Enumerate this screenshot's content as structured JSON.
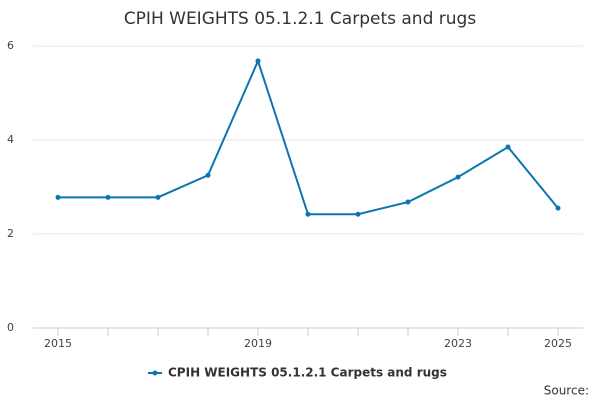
{
  "chart_data": {
    "type": "line",
    "title": "CPIH WEIGHTS 05.1.2.1 Carpets and rugs",
    "x": [
      2015,
      2016,
      2017,
      2018,
      2019,
      2020,
      2021,
      2022,
      2023,
      2024,
      2025
    ],
    "series": [
      {
        "name": "CPIH WEIGHTS 05.1.2.1 Carpets and rugs",
        "color": "#0a75b3",
        "values": [
          2.78,
          2.78,
          2.78,
          3.25,
          5.68,
          2.42,
          2.42,
          2.68,
          3.21,
          3.85,
          2.55
        ]
      }
    ],
    "xlim": [
      2014.5,
      2025.5
    ],
    "xticks": [
      2015,
      2019,
      2023,
      2025
    ],
    "ylim": [
      0,
      6
    ],
    "yticks": [
      0,
      2,
      4,
      6
    ],
    "grid": true,
    "legend": "bottom",
    "source": "Source:"
  }
}
